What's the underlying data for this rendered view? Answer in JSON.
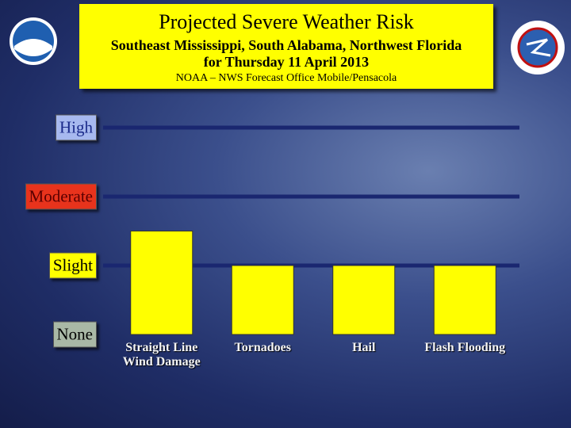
{
  "chart_data": {
    "type": "bar",
    "title": "Projected Severe Weather Risk",
    "subtitle": [
      "Southeast Mississippi, South Alabama, Northwest Florida",
      "for Thursday 11 April 2013"
    ],
    "source": "NOAA – NWS Forecast Office Mobile/Pensacola",
    "categories": [
      "Straight Line Wind Damage",
      "Tornadoes",
      "Hail",
      "Flash Flooding"
    ],
    "values": [
      1.5,
      1,
      1,
      1
    ],
    "color": "#ffff00",
    "ylim": [
      0,
      3
    ],
    "yticks": [
      {
        "value": 0,
        "label": "None"
      },
      {
        "value": 1,
        "label": "Slight"
      },
      {
        "value": 2,
        "label": "Moderate"
      },
      {
        "value": 3,
        "label": "High"
      }
    ],
    "ytick_box_colors": [
      "#a9b8a6",
      "#ffff00",
      "#e8331c",
      "#a7b9ef"
    ],
    "ytick_text_colors": [
      "#000000",
      "#000000",
      "#5a0000",
      "#1a2a8a"
    ],
    "grid": true,
    "grid_color": "#1a2770"
  }
}
